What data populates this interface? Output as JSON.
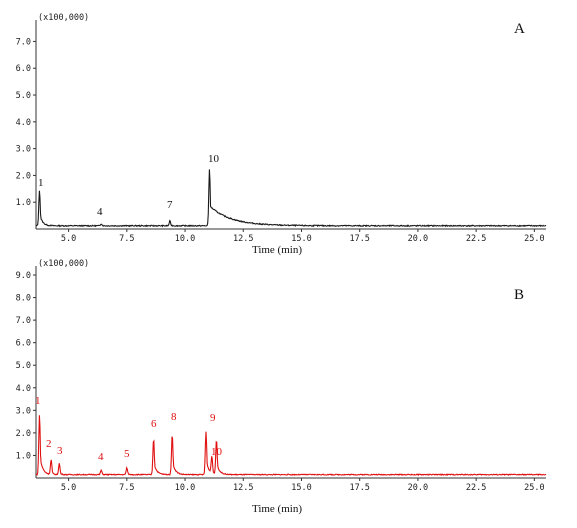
{
  "chart_data": [
    {
      "type": "line",
      "panel": "A",
      "color": "#1a1a1a",
      "unit_label": "(x100,000)",
      "xlabel": "Time (min)",
      "xlim": [
        3.6,
        25.5
      ],
      "ylim": [
        0,
        7.8
      ],
      "x_ticks": [
        5.0,
        7.5,
        10.0,
        12.5,
        15.0,
        17.5,
        20.0,
        22.5,
        25.0
      ],
      "x_tick_labels": [
        "5.0",
        "7.5",
        "10.0",
        "12.5",
        "15.0",
        "17.5",
        "20.0",
        "22.5",
        "25.0"
      ],
      "y_ticks": [
        1,
        2,
        3,
        4,
        5,
        6,
        7
      ],
      "y_tick_labels": [
        "1.0",
        "2.0",
        "3.0",
        "4.0",
        "5.0",
        "6.0",
        "7.0"
      ],
      "baseline": 0.12,
      "peaks": [
        {
          "label": "1",
          "x": 3.75,
          "y": 1.45
        },
        {
          "label": "4",
          "x": 6.4,
          "y": 0.2
        },
        {
          "label": "7",
          "x": 9.35,
          "y": 0.3
        },
        {
          "label": "10",
          "x": 11.05,
          "y": 2.25
        }
      ]
    },
    {
      "type": "line",
      "panel": "B",
      "color": "#e01010",
      "unit_label": "(x100,000)",
      "xlabel": "Time (min)",
      "xlim": [
        3.6,
        25.5
      ],
      "ylim": [
        0,
        9.4
      ],
      "x_ticks": [
        5.0,
        7.5,
        10.0,
        12.5,
        15.0,
        17.5,
        20.0,
        22.5,
        25.0
      ],
      "x_tick_labels": [
        "5.0",
        "7.5",
        "10.0",
        "12.5",
        "15.0",
        "17.5",
        "20.0",
        "22.5",
        "25.0"
      ],
      "y_ticks": [
        1,
        2,
        3,
        4,
        5,
        6,
        7,
        8,
        9
      ],
      "y_tick_labels": [
        "1.0",
        "2.0",
        "3.0",
        "4.0",
        "5.0",
        "6.0",
        "7.0",
        "8.0",
        "9.0"
      ],
      "baseline": 0.15,
      "peaks": [
        {
          "label": "1",
          "x": 3.75,
          "y": 2.8
        },
        {
          "label": "2",
          "x": 4.25,
          "y": 0.8
        },
        {
          "label": "3",
          "x": 4.6,
          "y": 0.65
        },
        {
          "label": "4",
          "x": 6.4,
          "y": 0.35
        },
        {
          "label": "5",
          "x": 7.5,
          "y": 0.45
        },
        {
          "label": "6",
          "x": 8.65,
          "y": 1.75
        },
        {
          "label": "8",
          "x": 9.45,
          "y": 1.95
        },
        {
          "label": "9",
          "x": 10.9,
          "y": 2.05
        },
        {
          "label": "10",
          "x": 11.15,
          "y": 0.9
        },
        {
          "label": "",
          "x": 11.35,
          "y": 1.7
        }
      ]
    }
  ]
}
